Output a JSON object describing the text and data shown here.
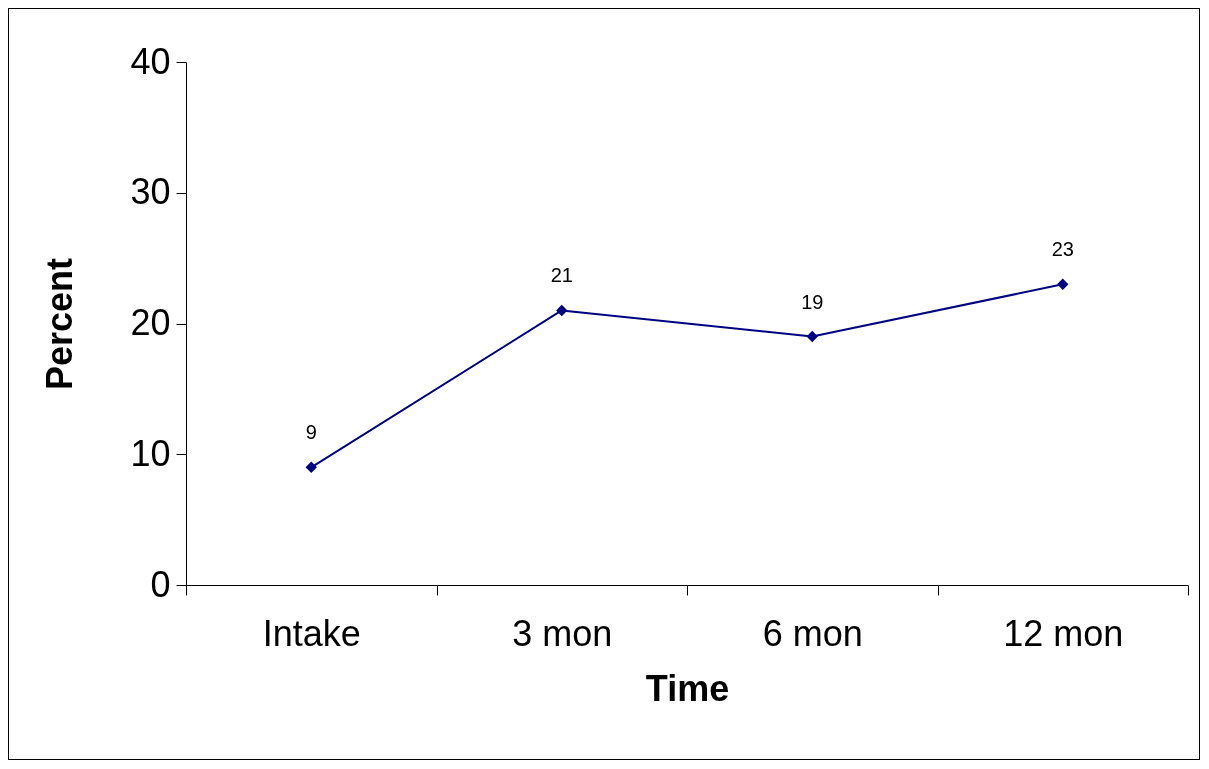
{
  "chart_data": {
    "type": "line",
    "xlabel": "Time",
    "ylabel": "Percent",
    "categories": [
      "Intake",
      "3 mon",
      "6 mon",
      "12 mon"
    ],
    "values": [
      9,
      21,
      19,
      23
    ],
    "color": "#000080",
    "ylim": [
      0,
      40
    ],
    "yticks": [
      0,
      10,
      20,
      30,
      40
    ],
    "grid": false,
    "marker": "diamond",
    "line_style": "solid",
    "data_labels": true
  }
}
